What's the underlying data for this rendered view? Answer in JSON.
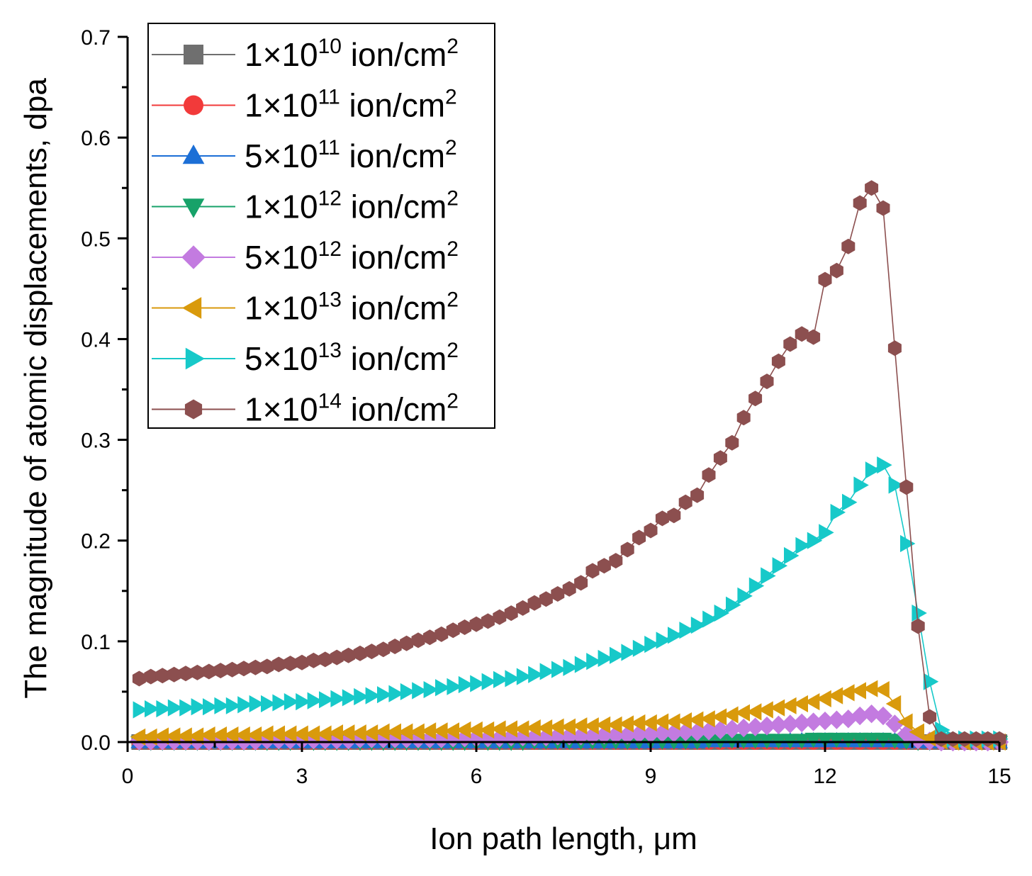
{
  "chart_data": {
    "type": "line",
    "title": "",
    "xlabel": "Ion path length, μm",
    "ylabel": "The magnitude of atomic displacements, dpa",
    "xlim": [
      0,
      15
    ],
    "ylim": [
      0,
      0.7
    ],
    "xticks": [
      0,
      3,
      6,
      9,
      12,
      15
    ],
    "xtick_labels": [
      "0",
      "3",
      "6",
      "9",
      "12",
      "15"
    ],
    "yticks": [
      0.0,
      0.1,
      0.2,
      0.3,
      0.4,
      0.5,
      0.6,
      0.7
    ],
    "ytick_labels": [
      "0.0",
      "0.1",
      "0.2",
      "0.3",
      "0.4",
      "0.5",
      "0.6",
      "0.7"
    ],
    "grid": false,
    "legend_position": "top-left",
    "x": [
      0.2,
      0.4,
      0.6,
      0.8,
      1.0,
      1.2,
      1.4,
      1.6,
      1.8,
      2.0,
      2.2,
      2.4,
      2.6,
      2.8,
      3.0,
      3.2,
      3.4,
      3.6,
      3.8,
      4.0,
      4.2,
      4.4,
      4.6,
      4.8,
      5.0,
      5.2,
      5.4,
      5.6,
      5.8,
      6.0,
      6.2,
      6.4,
      6.6,
      6.8,
      7.0,
      7.2,
      7.4,
      7.6,
      7.8,
      8.0,
      8.2,
      8.4,
      8.6,
      8.8,
      9.0,
      9.2,
      9.4,
      9.6,
      9.8,
      10.0,
      10.2,
      10.4,
      10.6,
      10.8,
      11.0,
      11.2,
      11.4,
      11.6,
      11.8,
      12.0,
      12.2,
      12.4,
      12.6,
      12.8,
      13.0,
      13.2,
      13.4,
      13.6,
      13.8,
      14.0,
      14.2,
      14.4,
      14.6,
      14.8,
      15.0
    ],
    "series": [
      {
        "name": "1×10^10 ion/cm^2",
        "legend_base": "1×10",
        "legend_exp": "10",
        "legend_unit": "ion/cm",
        "legend_unit_exp": "2",
        "color": "#6f6f6f",
        "marker": "square",
        "values": [
          0,
          0,
          0,
          0,
          0,
          0,
          0,
          0,
          0,
          0,
          0,
          0,
          0,
          0,
          0,
          0,
          0,
          0,
          0,
          0,
          0,
          0,
          0,
          0,
          0,
          0,
          0,
          0,
          0,
          0,
          0,
          0,
          0,
          0,
          0,
          0,
          0,
          0,
          0,
          0,
          0,
          0,
          0,
          0,
          0,
          0,
          0,
          0,
          0,
          0,
          0,
          0,
          0,
          0,
          0,
          0,
          0,
          0,
          0,
          0,
          0,
          0,
          0,
          0,
          0,
          0,
          0,
          0,
          0,
          0,
          0,
          0,
          0,
          0,
          0
        ]
      },
      {
        "name": "1×10^11 ion/cm^2",
        "legend_base": "1×10",
        "legend_exp": "11",
        "legend_unit": "ion/cm",
        "legend_unit_exp": "2",
        "color": "#f23a3a",
        "marker": "circle",
        "values": [
          0,
          0,
          0,
          0,
          0,
          0,
          0,
          0,
          0,
          0,
          0,
          0,
          0,
          0,
          0,
          0,
          0,
          0,
          0,
          0,
          0,
          0,
          0,
          0,
          0,
          0,
          0,
          0,
          0,
          0,
          0,
          0,
          0,
          0,
          0,
          0,
          0,
          0,
          0,
          0,
          0,
          0,
          0,
          0,
          0,
          0,
          0,
          0,
          0,
          0,
          0,
          0,
          0,
          0,
          0,
          0,
          0,
          0,
          0,
          0,
          0,
          0,
          0,
          0,
          0,
          0,
          0,
          0,
          0,
          0,
          0,
          0,
          0,
          0,
          0
        ]
      },
      {
        "name": "5×10^11 ion/cm^2",
        "legend_base": "5×10",
        "legend_exp": "11",
        "legend_unit": "ion/cm",
        "legend_unit_exp": "2",
        "color": "#1c6fd6",
        "marker": "triangle-up",
        "values": [
          0,
          0,
          0,
          0,
          0,
          0,
          0,
          0,
          0,
          0,
          0,
          0,
          0,
          0,
          0,
          0,
          0,
          0,
          0,
          0,
          0,
          0,
          0,
          0,
          0,
          0,
          0,
          0,
          0,
          0,
          0,
          0,
          0,
          0,
          0,
          0,
          0,
          0,
          0,
          0,
          0,
          0,
          0,
          0,
          0,
          0,
          0,
          0,
          0,
          0.001,
          0.001,
          0.001,
          0.001,
          0.001,
          0.001,
          0.001,
          0.001,
          0.001,
          0.001,
          0.001,
          0.001,
          0.001,
          0.001,
          0.001,
          0.001,
          0.001,
          0,
          0,
          0,
          0,
          0,
          0,
          0,
          0,
          0
        ]
      },
      {
        "name": "1×10^12 ion/cm^2",
        "legend_base": "1×10",
        "legend_exp": "12",
        "legend_unit": "ion/cm",
        "legend_unit_exp": "2",
        "color": "#17a269",
        "marker": "triangle-down",
        "values": [
          0,
          0,
          0,
          0,
          0,
          0,
          0,
          0,
          0,
          0,
          0,
          0,
          0,
          0,
          0,
          0,
          0,
          0,
          0,
          0,
          0,
          0,
          0,
          0,
          0,
          0,
          0,
          0,
          0,
          0,
          0,
          0,
          0,
          0,
          0.001,
          0.001,
          0.001,
          0.001,
          0.001,
          0.001,
          0.001,
          0.001,
          0.001,
          0.001,
          0.001,
          0.001,
          0.001,
          0.001,
          0.001,
          0.002,
          0.002,
          0.002,
          0.002,
          0.002,
          0.002,
          0.002,
          0.002,
          0.002,
          0.003,
          0.003,
          0.003,
          0.003,
          0.003,
          0.003,
          0.003,
          0.002,
          0.001,
          0,
          0,
          0,
          0,
          0,
          0,
          0,
          0
        ]
      },
      {
        "name": "5×10^12 ion/cm^2",
        "legend_base": "5×10",
        "legend_exp": "12",
        "legend_unit": " ion/cm",
        "legend_unit_exp": "2",
        "color": "#c37be0",
        "marker": "diamond",
        "values": [
          0.001,
          0.001,
          0.001,
          0.001,
          0.001,
          0.001,
          0.001,
          0.001,
          0.001,
          0.001,
          0.001,
          0.002,
          0.002,
          0.002,
          0.002,
          0.002,
          0.002,
          0.002,
          0.002,
          0.003,
          0.003,
          0.003,
          0.003,
          0.003,
          0.003,
          0.003,
          0.003,
          0.004,
          0.004,
          0.004,
          0.004,
          0.004,
          0.005,
          0.005,
          0.005,
          0.005,
          0.006,
          0.006,
          0.006,
          0.006,
          0.007,
          0.007,
          0.007,
          0.008,
          0.008,
          0.009,
          0.009,
          0.01,
          0.01,
          0.011,
          0.012,
          0.013,
          0.014,
          0.015,
          0.016,
          0.017,
          0.018,
          0.019,
          0.02,
          0.021,
          0.022,
          0.023,
          0.026,
          0.028,
          0.026,
          0.018,
          0.008,
          0.002,
          0.001,
          0,
          0,
          0,
          0,
          0,
          0
        ]
      },
      {
        "name": "1×10^13 ion/cm^2",
        "legend_base": "1×10",
        "legend_exp": "13",
        "legend_unit": "ion/cm",
        "legend_unit_exp": "2",
        "color": "#d99a0c",
        "marker": "triangle-left",
        "values": [
          0.005,
          0.005,
          0.006,
          0.006,
          0.006,
          0.006,
          0.007,
          0.007,
          0.007,
          0.007,
          0.007,
          0.008,
          0.008,
          0.008,
          0.008,
          0.008,
          0.008,
          0.009,
          0.009,
          0.009,
          0.009,
          0.01,
          0.01,
          0.01,
          0.01,
          0.011,
          0.011,
          0.011,
          0.012,
          0.012,
          0.012,
          0.013,
          0.013,
          0.013,
          0.014,
          0.014,
          0.015,
          0.015,
          0.016,
          0.016,
          0.017,
          0.017,
          0.018,
          0.019,
          0.019,
          0.02,
          0.02,
          0.021,
          0.022,
          0.023,
          0.025,
          0.027,
          0.029,
          0.03,
          0.032,
          0.034,
          0.036,
          0.038,
          0.04,
          0.043,
          0.046,
          0.049,
          0.051,
          0.053,
          0.052,
          0.038,
          0.02,
          0.01,
          0.004,
          0.001,
          0,
          0,
          0,
          0,
          0
        ]
      },
      {
        "name": "5×10^13 ion/cm^2",
        "legend_base": "5×10",
        "legend_exp": "13",
        "legend_unit": "ion/cm",
        "legend_unit_exp": "2",
        "color": "#17c9c9",
        "marker": "triangle-right",
        "values": [
          0.032,
          0.033,
          0.033,
          0.034,
          0.034,
          0.035,
          0.035,
          0.036,
          0.036,
          0.037,
          0.038,
          0.038,
          0.039,
          0.04,
          0.04,
          0.041,
          0.042,
          0.043,
          0.044,
          0.045,
          0.046,
          0.047,
          0.048,
          0.05,
          0.051,
          0.052,
          0.054,
          0.055,
          0.057,
          0.058,
          0.06,
          0.062,
          0.063,
          0.065,
          0.067,
          0.07,
          0.072,
          0.074,
          0.077,
          0.08,
          0.083,
          0.086,
          0.089,
          0.093,
          0.097,
          0.101,
          0.106,
          0.111,
          0.116,
          0.122,
          0.128,
          0.136,
          0.145,
          0.155,
          0.165,
          0.175,
          0.185,
          0.195,
          0.2,
          0.208,
          0.228,
          0.238,
          0.255,
          0.27,
          0.275,
          0.255,
          0.197,
          0.128,
          0.06,
          0.012,
          0.003,
          0.003,
          0.003,
          0.003,
          0.003
        ]
      },
      {
        "name": "1×10^14 ion/cm^2",
        "legend_base": "1×10",
        "legend_exp": "14",
        "legend_unit": "ion/cm",
        "legend_unit_exp": "2",
        "color": "#8c4f4f",
        "marker": "hexagon",
        "values": [
          0.063,
          0.065,
          0.066,
          0.067,
          0.068,
          0.069,
          0.07,
          0.071,
          0.072,
          0.073,
          0.074,
          0.075,
          0.077,
          0.078,
          0.079,
          0.081,
          0.082,
          0.084,
          0.086,
          0.088,
          0.09,
          0.092,
          0.095,
          0.098,
          0.101,
          0.104,
          0.107,
          0.111,
          0.114,
          0.117,
          0.12,
          0.124,
          0.128,
          0.133,
          0.138,
          0.142,
          0.147,
          0.152,
          0.158,
          0.17,
          0.175,
          0.18,
          0.191,
          0.203,
          0.21,
          0.222,
          0.225,
          0.238,
          0.245,
          0.265,
          0.282,
          0.297,
          0.322,
          0.341,
          0.358,
          0.378,
          0.395,
          0.405,
          0.402,
          0.459,
          0.468,
          0.492,
          0.535,
          0.55,
          0.53,
          0.391,
          0.253,
          0.115,
          0.025,
          0.003,
          0.003,
          0.003,
          0.003,
          0.003,
          0.003
        ]
      }
    ]
  }
}
